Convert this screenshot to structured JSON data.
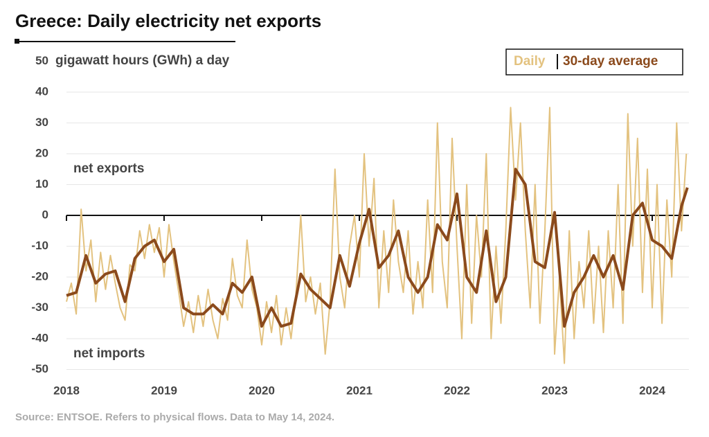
{
  "chart_data": {
    "type": "line",
    "title": "Greece: Daily electricity net exports",
    "y_label": "gigawatt hours (GWh) a day",
    "annotations": [
      "net exports",
      "net imports"
    ],
    "source": "Source: ENTSOE. Refers to physical flows. Data to May 14, 2024.",
    "xlim": [
      2018,
      2024.37
    ],
    "xticks": [
      2018,
      2019,
      2020,
      2021,
      2022,
      2023,
      2024
    ],
    "ylim": [
      -50,
      50
    ],
    "yticks": [
      -50,
      -40,
      -30,
      -20,
      -10,
      0,
      10,
      20,
      30,
      40,
      50
    ],
    "grid": true,
    "legend": "top-right",
    "series": [
      {
        "name": "Daily",
        "color": "#e3c27f",
        "x": [
          2018.0,
          2018.05,
          2018.1,
          2018.15,
          2018.2,
          2018.25,
          2018.3,
          2018.35,
          2018.4,
          2018.45,
          2018.5,
          2018.55,
          2018.6,
          2018.65,
          2018.7,
          2018.75,
          2018.8,
          2018.85,
          2018.9,
          2018.95,
          2019.0,
          2019.05,
          2019.1,
          2019.15,
          2019.2,
          2019.25,
          2019.3,
          2019.35,
          2019.4,
          2019.45,
          2019.5,
          2019.55,
          2019.6,
          2019.65,
          2019.7,
          2019.75,
          2019.8,
          2019.85,
          2019.9,
          2019.95,
          2020.0,
          2020.05,
          2020.1,
          2020.15,
          2020.2,
          2020.25,
          2020.3,
          2020.35,
          2020.4,
          2020.45,
          2020.5,
          2020.55,
          2020.6,
          2020.65,
          2020.7,
          2020.75,
          2020.8,
          2020.85,
          2020.9,
          2020.95,
          2021.0,
          2021.05,
          2021.1,
          2021.15,
          2021.2,
          2021.25,
          2021.3,
          2021.35,
          2021.4,
          2021.45,
          2021.5,
          2021.55,
          2021.6,
          2021.65,
          2021.7,
          2021.75,
          2021.8,
          2021.85,
          2021.9,
          2021.95,
          2022.0,
          2022.05,
          2022.1,
          2022.15,
          2022.2,
          2022.25,
          2022.3,
          2022.35,
          2022.4,
          2022.45,
          2022.5,
          2022.55,
          2022.6,
          2022.65,
          2022.7,
          2022.75,
          2022.8,
          2022.85,
          2022.9,
          2022.95,
          2023.0,
          2023.05,
          2023.1,
          2023.15,
          2023.2,
          2023.25,
          2023.3,
          2023.35,
          2023.4,
          2023.45,
          2023.5,
          2023.55,
          2023.6,
          2023.65,
          2023.7,
          2023.75,
          2023.8,
          2023.85,
          2023.9,
          2023.95,
          2024.0,
          2024.05,
          2024.1,
          2024.15,
          2024.2,
          2024.25,
          2024.3,
          2024.35
        ],
        "values": [
          -28,
          -22,
          -32,
          2,
          -18,
          -8,
          -28,
          -12,
          -24,
          -13,
          -22,
          -30,
          -34,
          -16,
          -18,
          -5,
          -14,
          -3,
          -12,
          -4,
          -20,
          -3,
          -15,
          -25,
          -36,
          -28,
          -38,
          -26,
          -36,
          -24,
          -34,
          -40,
          -27,
          -34,
          -14,
          -26,
          -30,
          -8,
          -24,
          -30,
          -42,
          -28,
          -38,
          -26,
          -42,
          -30,
          -40,
          -26,
          0,
          -28,
          -20,
          -32,
          -22,
          -45,
          -28,
          15,
          -20,
          -30,
          -10,
          0,
          -20,
          20,
          -10,
          12,
          -30,
          -5,
          -25,
          5,
          -15,
          -25,
          -5,
          -32,
          -15,
          -30,
          5,
          -25,
          30,
          -15,
          -30,
          25,
          -10,
          -40,
          10,
          -35,
          0,
          -20,
          20,
          -40,
          -10,
          -35,
          -5,
          35,
          5,
          30,
          -5,
          -30,
          10,
          -35,
          -5,
          35,
          -45,
          -20,
          -48,
          -5,
          -40,
          -15,
          -30,
          -5,
          -35,
          -10,
          -38,
          -5,
          -30,
          10,
          -35,
          33,
          -10,
          25,
          -25,
          15,
          -30,
          10,
          -35,
          5,
          -20,
          30,
          -5,
          20
        ]
      },
      {
        "name": "30-day average",
        "color": "#8b4a1c",
        "x": [
          2018.0,
          2018.1,
          2018.2,
          2018.3,
          2018.4,
          2018.5,
          2018.6,
          2018.7,
          2018.8,
          2018.9,
          2019.0,
          2019.1,
          2019.2,
          2019.3,
          2019.4,
          2019.5,
          2019.6,
          2019.7,
          2019.8,
          2019.9,
          2020.0,
          2020.1,
          2020.2,
          2020.3,
          2020.4,
          2020.5,
          2020.6,
          2020.7,
          2020.8,
          2020.9,
          2021.0,
          2021.1,
          2021.2,
          2021.3,
          2021.4,
          2021.5,
          2021.6,
          2021.7,
          2021.8,
          2021.9,
          2022.0,
          2022.1,
          2022.2,
          2022.3,
          2022.4,
          2022.5,
          2022.6,
          2022.7,
          2022.8,
          2022.9,
          2023.0,
          2023.1,
          2023.2,
          2023.3,
          2023.4,
          2023.5,
          2023.6,
          2023.7,
          2023.8,
          2023.9,
          2024.0,
          2024.1,
          2024.2,
          2024.3,
          2024.36
        ],
        "values": [
          -26,
          -25,
          -13,
          -22,
          -19,
          -18,
          -28,
          -14,
          -10,
          -8,
          -15,
          -11,
          -30,
          -32,
          -32,
          -29,
          -32,
          -22,
          -25,
          -20,
          -36,
          -30,
          -36,
          -35,
          -19,
          -24,
          -27,
          -30,
          -13,
          -23,
          -9,
          2,
          -17,
          -13,
          -5,
          -20,
          -25,
          -20,
          -3,
          -8,
          7,
          -20,
          -25,
          -5,
          -28,
          -20,
          15,
          10,
          -15,
          -17,
          1,
          -36,
          -25,
          -20,
          -13,
          -20,
          -13,
          -24,
          0,
          4,
          -8,
          -10,
          -14,
          3,
          9
        ]
      }
    ]
  }
}
